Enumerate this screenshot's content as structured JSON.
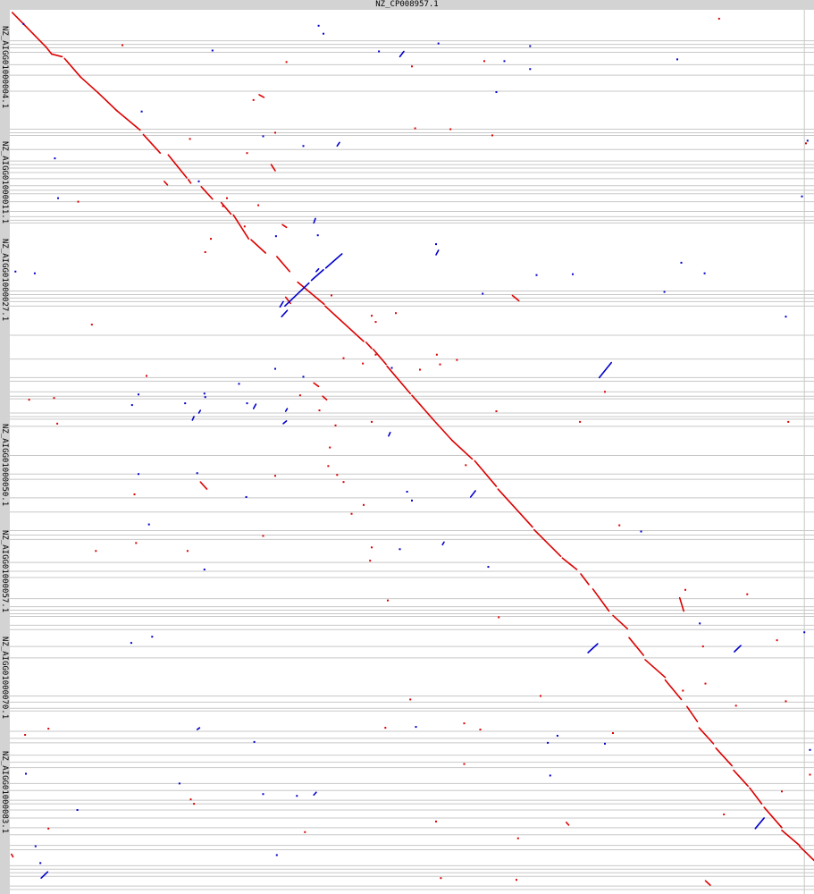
{
  "chart_data": {
    "type": "dotplot",
    "title": "NZ_CP008957.1",
    "x_length": 100,
    "y_length": 100,
    "y_labels": [
      {
        "label": "NZ_AIGG01000004.1",
        "center": 6.5
      },
      {
        "label": "NZ_AIGG01000011.1",
        "center": 19.5
      },
      {
        "label": "NZ_AIGG01000027.1",
        "center": 30.5
      },
      {
        "label": "NZ_AIGG01000050.1",
        "center": 51.5
      },
      {
        "label": "NZ_AIGG01000057.1",
        "center": 63.5
      },
      {
        "label": "NZ_AIGG01000070.1",
        "center": 75.5
      },
      {
        "label": "NZ_AIGG01000083.1",
        "center": 88.5
      }
    ],
    "boundaries_y": [
      3.5,
      3.9,
      4.3,
      4.8,
      6.2,
      7.4,
      9.2,
      13.5,
      13.9,
      14.2,
      15.8,
      17.1,
      17.5,
      17.9,
      18.4,
      19.1,
      19.9,
      20.4,
      20.8,
      21.7,
      22.8,
      23.4,
      23.8,
      24.1,
      31.8,
      32.2,
      32.6,
      33.0,
      33.5,
      36.8,
      39.5,
      41.6,
      42.0,
      43.2,
      43.7,
      44.0,
      45.6,
      46.0,
      46.3,
      47.1,
      50.4,
      52.5,
      53.1,
      55.2,
      56.8,
      58.9,
      59.4,
      59.9,
      62.5,
      63.5,
      64.2,
      66.6,
      67.5,
      67.9,
      68.3,
      68.6,
      69.6,
      70.1,
      72.0,
      73.3,
      77.6,
      78.3,
      79.0,
      79.3,
      81.6,
      82.4,
      82.9,
      84.3,
      85.1,
      85.7,
      87.5,
      88.3,
      89.4,
      89.8,
      90.5,
      91.4,
      92.5,
      93.3,
      94.5,
      95.0,
      96.8,
      97.2,
      97.6,
      98.0,
      99.1,
      99.5
    ],
    "boundaries_x": [
      98.8
    ],
    "forward_segments": [
      [
        0.3,
        0.3,
        4.5,
        4.2
      ],
      [
        4.5,
        4.2,
        5.2,
        5.0
      ],
      [
        5.2,
        5.0,
        6.5,
        5.3
      ],
      [
        6.8,
        5.5,
        8.8,
        7.6
      ],
      [
        8.8,
        7.6,
        11.0,
        9.4
      ],
      [
        11.0,
        9.4,
        13.3,
        11.4
      ],
      [
        13.3,
        11.4,
        16.2,
        13.6
      ],
      [
        16.6,
        14.1,
        18.7,
        16.2
      ],
      [
        19.7,
        16.4,
        22.0,
        19.0
      ],
      [
        22.2,
        19.2,
        22.5,
        19.6
      ],
      [
        23.8,
        20.0,
        25.2,
        21.4
      ],
      [
        26.3,
        21.8,
        27.5,
        23.1
      ],
      [
        27.8,
        23.2,
        29.7,
        25.9
      ],
      [
        30.0,
        26.0,
        31.8,
        27.5
      ],
      [
        33.2,
        27.9,
        34.8,
        29.6
      ],
      [
        35.8,
        30.8,
        39.1,
        33.3
      ],
      [
        39.2,
        33.5,
        44.0,
        37.5
      ],
      [
        44.3,
        37.6,
        45.0,
        38.3
      ],
      [
        45.2,
        38.4,
        46.8,
        40.1
      ],
      [
        46.9,
        40.3,
        49.8,
        43.4
      ],
      [
        50.0,
        43.6,
        52.8,
        46.5
      ],
      [
        52.9,
        46.6,
        55.0,
        48.7
      ],
      [
        55.0,
        48.7,
        57.5,
        50.8
      ],
      [
        57.8,
        51.0,
        60.5,
        53.9
      ],
      [
        60.7,
        54.2,
        65.0,
        58.5
      ],
      [
        65.2,
        58.8,
        68.5,
        61.8
      ],
      [
        68.7,
        62.0,
        70.5,
        63.3
      ],
      [
        71.0,
        63.8,
        72.0,
        65.0
      ],
      [
        72.5,
        65.5,
        74.5,
        68.0
      ],
      [
        75.0,
        68.5,
        76.8,
        70.0
      ],
      [
        77.0,
        71.0,
        78.8,
        73.0
      ],
      [
        79.0,
        73.5,
        81.5,
        75.5
      ],
      [
        81.5,
        75.8,
        83.5,
        78.0
      ],
      [
        84.2,
        78.8,
        85.5,
        80.5
      ],
      [
        85.7,
        81.2,
        87.5,
        83.0
      ],
      [
        87.8,
        83.5,
        89.8,
        85.5
      ],
      [
        90.0,
        86.0,
        91.8,
        87.8
      ],
      [
        92.0,
        88.0,
        93.5,
        89.8
      ],
      [
        93.8,
        90.2,
        96.0,
        92.5
      ],
      [
        96.0,
        92.8,
        98.2,
        94.5
      ],
      [
        98.2,
        94.6,
        100.0,
        96.2
      ],
      [
        62.5,
        32.3,
        63.3,
        32.9
      ],
      [
        83.3,
        66.5,
        83.8,
        68.0
      ],
      [
        38.9,
        43.7,
        39.4,
        44.1
      ],
      [
        33.9,
        24.3,
        34.4,
        24.6
      ],
      [
        34.3,
        32.5,
        34.9,
        33.2
      ],
      [
        23.7,
        53.4,
        24.5,
        54.2
      ],
      [
        0.2,
        95.5,
        0.4,
        95.8
      ],
      [
        86.5,
        98.5,
        87.1,
        99.0
      ],
      [
        69.2,
        91.9,
        69.5,
        92.2
      ],
      [
        31.0,
        9.6,
        31.6,
        9.9
      ],
      [
        32.5,
        17.5,
        33.0,
        18.2
      ],
      [
        37.8,
        42.2,
        38.4,
        42.6
      ],
      [
        19.2,
        19.4,
        19.6,
        19.8
      ]
    ],
    "reverse_segments": [
      [
        41.3,
        27.6,
        39.3,
        29.2
      ],
      [
        39.0,
        29.4,
        37.5,
        30.6
      ],
      [
        37.2,
        30.9,
        34.2,
        33.5
      ],
      [
        74.8,
        39.9,
        73.3,
        41.6
      ],
      [
        73.1,
        71.7,
        71.9,
        72.7
      ],
      [
        90.9,
        71.9,
        90.1,
        72.6
      ],
      [
        57.9,
        54.4,
        57.3,
        55.1
      ],
      [
        93.8,
        91.4,
        92.7,
        92.6
      ],
      [
        4.7,
        97.5,
        3.9,
        98.2
      ],
      [
        38.0,
        23.6,
        37.8,
        24.1
      ],
      [
        41.0,
        15.0,
        40.7,
        15.4
      ],
      [
        49.0,
        4.7,
        48.5,
        5.3
      ],
      [
        53.3,
        27.2,
        53.0,
        27.7
      ],
      [
        34.0,
        33.0,
        33.6,
        33.6
      ],
      [
        34.5,
        34.0,
        33.8,
        34.7
      ],
      [
        38.4,
        29.3,
        38.1,
        29.6
      ],
      [
        34.5,
        45.1,
        34.3,
        45.4
      ],
      [
        23.7,
        45.3,
        23.5,
        45.6
      ],
      [
        30.6,
        44.6,
        30.3,
        45.1
      ],
      [
        22.9,
        46.0,
        22.7,
        46.4
      ],
      [
        34.4,
        46.5,
        34.0,
        46.8
      ],
      [
        47.3,
        47.8,
        47.1,
        48.2
      ],
      [
        54.0,
        60.2,
        53.8,
        60.5
      ],
      [
        38.1,
        88.5,
        37.8,
        88.8
      ],
      [
        23.6,
        81.2,
        23.3,
        81.4
      ]
    ],
    "forward_dots": [
      [
        88.2,
        1.0
      ],
      [
        60.0,
        14.2
      ],
      [
        60.5,
        45.4
      ],
      [
        74.0,
        43.2
      ],
      [
        66.0,
        77.6
      ],
      [
        56.5,
        80.7
      ],
      [
        58.5,
        81.4
      ],
      [
        34.4,
        5.9
      ],
      [
        30.3,
        10.2
      ],
      [
        29.5,
        16.2
      ],
      [
        27.0,
        21.3
      ],
      [
        25.0,
        25.9
      ],
      [
        45.5,
        35.3
      ],
      [
        55.6,
        39.6
      ],
      [
        53.5,
        40.1
      ],
      [
        53.1,
        39.0
      ],
      [
        41.5,
        39.4
      ],
      [
        38.5,
        45.3
      ],
      [
        40.5,
        47.0
      ],
      [
        39.6,
        51.6
      ],
      [
        8.5,
        21.7
      ],
      [
        5.9,
        46.8
      ],
      [
        2.4,
        44.1
      ],
      [
        15.5,
        54.8
      ],
      [
        15.7,
        60.3
      ],
      [
        22.1,
        61.2
      ],
      [
        10.7,
        61.2
      ],
      [
        46.7,
        81.2
      ],
      [
        4.8,
        81.3
      ],
      [
        22.9,
        89.8
      ],
      [
        95.4,
        71.3
      ],
      [
        96.0,
        88.4
      ],
      [
        99.0,
        15.1
      ],
      [
        99.5,
        86.5
      ],
      [
        31.5,
        59.5
      ],
      [
        42.5,
        57.0
      ],
      [
        59.0,
        5.8
      ],
      [
        50.4,
        13.4
      ],
      [
        33.0,
        13.9
      ],
      [
        30.9,
        22.1
      ],
      [
        29.2,
        24.5
      ],
      [
        48.0,
        34.3
      ],
      [
        45.0,
        34.6
      ],
      [
        45.5,
        39.0
      ],
      [
        43.9,
        40.0
      ],
      [
        51.0,
        40.7
      ],
      [
        40.0,
        32.3
      ],
      [
        40.7,
        52.6
      ],
      [
        41.5,
        53.4
      ],
      [
        56.7,
        51.5
      ],
      [
        39.8,
        49.5
      ],
      [
        49.8,
        78.0
      ],
      [
        56.5,
        85.3
      ],
      [
        75.0,
        81.8
      ],
      [
        84.0,
        65.6
      ],
      [
        90.3,
        78.7
      ],
      [
        83.7,
        77.0
      ],
      [
        14.0,
        4.0
      ],
      [
        5.5,
        43.9
      ],
      [
        10.2,
        35.6
      ],
      [
        45.0,
        46.6
      ],
      [
        50.0,
        6.4
      ],
      [
        17.0,
        41.4
      ],
      [
        63.2,
        93.7
      ],
      [
        70.9,
        46.6
      ],
      [
        96.8,
        46.6
      ],
      [
        91.7,
        66.1
      ],
      [
        53.6,
        98.2
      ],
      [
        63.0,
        98.4
      ],
      [
        1.9,
        82.0
      ],
      [
        86.2,
        72.0
      ],
      [
        86.5,
        76.2
      ],
      [
        96.5,
        78.2
      ],
      [
        4.8,
        92.6
      ],
      [
        88.8,
        91.0
      ],
      [
        54.8,
        13.5
      ],
      [
        26.5,
        22.2
      ],
      [
        33.0,
        52.7
      ],
      [
        36.1,
        43.6
      ],
      [
        44.8,
        62.3
      ],
      [
        47.0,
        66.8
      ],
      [
        22.4,
        14.6
      ],
      [
        45.0,
        60.8
      ],
      [
        60.8,
        68.7
      ],
      [
        75.8,
        58.3
      ],
      [
        24.3,
        27.4
      ],
      [
        36.7,
        93.0
      ],
      [
        44.0,
        56.0
      ],
      [
        22.5,
        89.3
      ],
      [
        53.0,
        91.8
      ]
    ],
    "reverse_dots": [
      [
        45.9,
        4.7
      ],
      [
        61.5,
        5.8
      ],
      [
        60.5,
        9.3
      ],
      [
        83.0,
        5.6
      ],
      [
        31.5,
        14.3
      ],
      [
        16.4,
        11.5
      ],
      [
        5.6,
        16.8
      ],
      [
        6.0,
        21.3
      ],
      [
        25.2,
        4.6
      ],
      [
        36.5,
        15.4
      ],
      [
        23.5,
        19.4
      ],
      [
        38.3,
        25.5
      ],
      [
        33.1,
        25.6
      ],
      [
        53.0,
        26.5
      ],
      [
        47.5,
        40.5
      ],
      [
        36.5,
        41.5
      ],
      [
        33.0,
        40.6
      ],
      [
        28.5,
        42.3
      ],
      [
        24.2,
        43.4
      ],
      [
        16.0,
        43.5
      ],
      [
        21.8,
        44.5
      ],
      [
        15.2,
        44.7
      ],
      [
        24.3,
        43.8
      ],
      [
        16.0,
        52.5
      ],
      [
        23.3,
        52.4
      ],
      [
        29.4,
        55.1
      ],
      [
        29.5,
        44.5
      ],
      [
        49.4,
        54.5
      ],
      [
        50.0,
        55.5
      ],
      [
        48.5,
        61.0
      ],
      [
        59.5,
        63.0
      ],
      [
        50.5,
        81.1
      ],
      [
        66.9,
        82.9
      ],
      [
        68.1,
        82.1
      ],
      [
        30.4,
        82.8
      ],
      [
        35.7,
        88.9
      ],
      [
        8.4,
        90.5
      ],
      [
        67.2,
        86.6
      ],
      [
        74.0,
        83.0
      ],
      [
        85.8,
        69.4
      ],
      [
        98.8,
        70.4
      ],
      [
        99.5,
        83.7
      ],
      [
        99.2,
        14.8
      ],
      [
        98.5,
        21.1
      ],
      [
        96.5,
        34.7
      ],
      [
        78.5,
        59.0
      ],
      [
        83.5,
        28.6
      ],
      [
        86.4,
        29.8
      ],
      [
        81.4,
        31.9
      ],
      [
        65.5,
        30.0
      ],
      [
        70.0,
        29.9
      ],
      [
        58.8,
        32.1
      ],
      [
        17.7,
        70.9
      ],
      [
        15.1,
        71.6
      ],
      [
        24.2,
        63.3
      ],
      [
        21.1,
        87.5
      ],
      [
        31.5,
        88.7
      ],
      [
        33.2,
        95.6
      ],
      [
        2.0,
        86.4
      ],
      [
        3.2,
        94.6
      ],
      [
        3.8,
        96.5
      ],
      [
        3.1,
        29.8
      ],
      [
        0.7,
        29.6
      ],
      [
        17.3,
        58.2
      ],
      [
        1.7,
        1.6
      ],
      [
        39.0,
        2.7
      ],
      [
        53.3,
        3.8
      ],
      [
        64.7,
        4.1
      ],
      [
        64.7,
        6.7
      ],
      [
        38.4,
        1.8
      ]
    ]
  }
}
